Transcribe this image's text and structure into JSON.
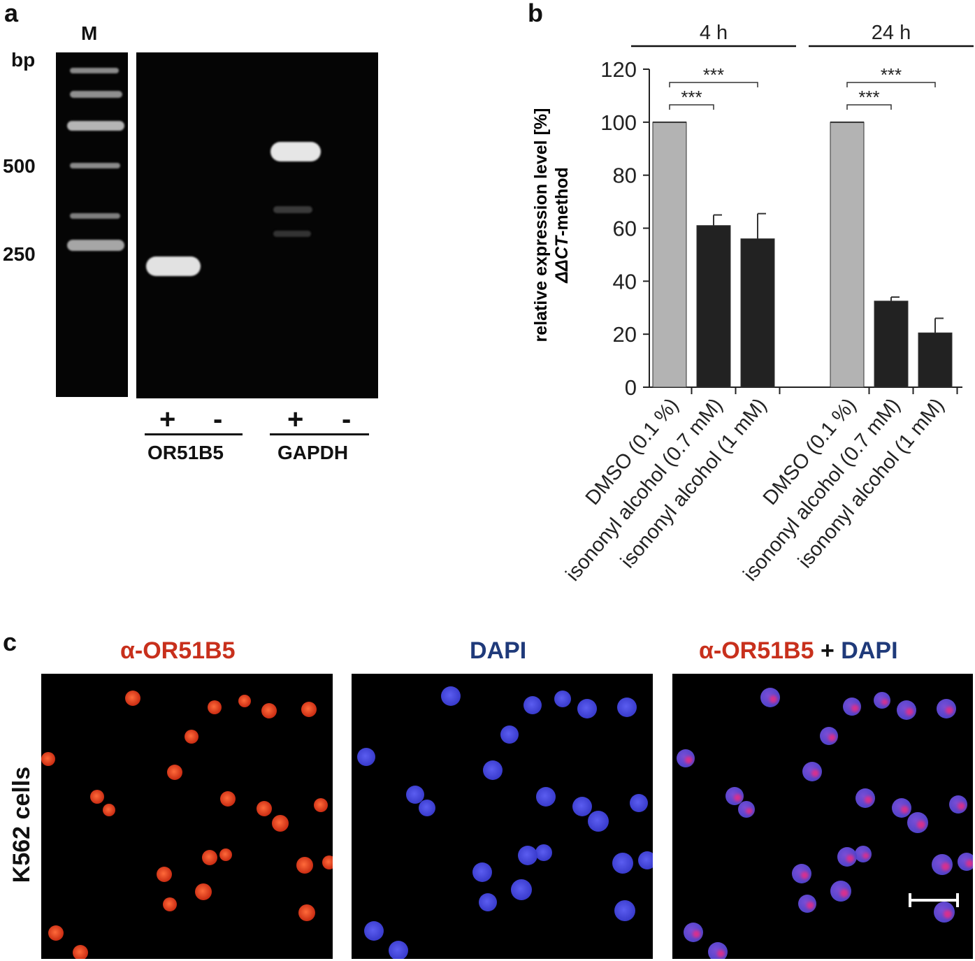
{
  "panel_a": {
    "label": "a",
    "marker_label": "M",
    "bp_label": "bp",
    "size_labels": [
      "500",
      "250"
    ],
    "lanes": [
      {
        "sign": "+",
        "group": "OR51B5"
      },
      {
        "sign": "-",
        "group": "OR51B5"
      },
      {
        "sign": "+",
        "group": "GAPDH"
      },
      {
        "sign": "-",
        "group": "GAPDH"
      }
    ],
    "group_labels": [
      "OR51B5",
      "GAPDH"
    ]
  },
  "panel_b": {
    "label": "b",
    "chart_data": {
      "type": "bar",
      "ylabel_line1": "relative expression level [%]",
      "ylabel_line2_italic": "ΔΔCT",
      "ylabel_line2_rest": "-method",
      "ylim": [
        0,
        120
      ],
      "yticks": [
        "0",
        "20",
        "40",
        "60",
        "80",
        "100",
        "120"
      ],
      "groups": [
        {
          "name": "4 h",
          "bars": [
            {
              "category": "DMSO (0.1 %)",
              "value": 100,
              "error": 0,
              "color": "#b3b3b3"
            },
            {
              "category": "isononyl alcohol (0.7 mM)",
              "value": 61,
              "error": 4,
              "color": "#222222"
            },
            {
              "category": "isononyl alcohol (1 mM)",
              "value": 56,
              "error": 9.5,
              "color": "#222222"
            }
          ],
          "significance": [
            "***",
            "***"
          ]
        },
        {
          "name": "24 h",
          "bars": [
            {
              "category": "DMSO (0.1 %)",
              "value": 100,
              "error": 0,
              "color": "#b3b3b3"
            },
            {
              "category": "isononyl alcohol (0.7 mM)",
              "value": 32.5,
              "error": 1.5,
              "color": "#222222"
            },
            {
              "category": "isononyl alcohol (1 mM)",
              "value": 20.5,
              "error": 5.5,
              "color": "#222222"
            }
          ],
          "significance": [
            "***",
            "***"
          ]
        }
      ]
    }
  },
  "panel_c": {
    "label": "c",
    "row_label": "K562 cells",
    "channels": [
      {
        "title": "α-OR51B5",
        "color": "#c8301c"
      },
      {
        "title": "DAPI",
        "color": "#1f3a7a"
      }
    ],
    "merge_title_a": "α-OR51B5",
    "merge_plus": "+",
    "merge_title_b": "DAPI"
  }
}
